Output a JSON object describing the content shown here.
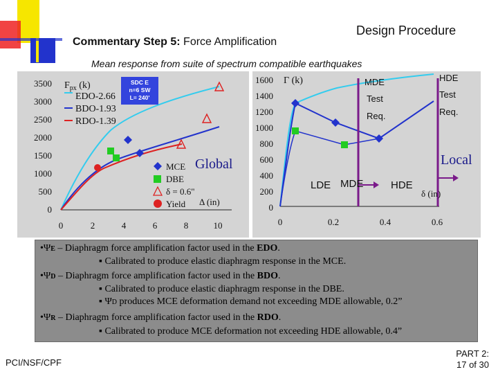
{
  "header": {
    "title_bold": "Commentary Step 5:",
    "title_rest": " Force Amplification",
    "right_title": "Design Procedure",
    "subtitle": "Mean response from suite of spectrum compatible earthquakes"
  },
  "left_chart": {
    "y_title": "F",
    "y_title_sub": "px",
    "y_title_unit": " (k)",
    "y_ticks": [
      "3500",
      "3000",
      "2500",
      "2000",
      "1500",
      "1000",
      "500",
      "0"
    ],
    "x_ticks": [
      "0",
      "2",
      "4",
      "6",
      "8",
      "10"
    ],
    "series_labels": [
      "EDO-2.66",
      "BDO-1.93",
      "RDO-1.39"
    ],
    "box_lines": [
      "SDC E",
      "n=6 SW",
      "L= 240'"
    ],
    "annotation": "Global",
    "legend": [
      "MCE",
      "DBE",
      "δ = 0.6\"",
      "Yield"
    ],
    "x_title": "Δ (in)"
  },
  "right_chart": {
    "y_title": "Γ (k)",
    "y_ticks": [
      "1600",
      "1400",
      "1200",
      "1000",
      "800",
      "600",
      "400",
      "200",
      "0"
    ],
    "x_ticks": [
      "0",
      "0.2",
      "0.4",
      "0.6"
    ],
    "labels": {
      "mde_top": "MDE",
      "test1": "Test",
      "req1": "Req.",
      "hde_top": "HDE",
      "test2": "Test",
      "req2": "Req.",
      "local": "Local",
      "lde": "LDE",
      "mde_bottom": "MDE",
      "hde_bottom": "HDE",
      "x_title": "δ (in)"
    }
  },
  "bullets": [
    {
      "prefix": "•Ψ",
      "sub": "E",
      "text": " –  Diaphragm force amplification factor used in the ",
      "bold": "EDO",
      "after": "."
    },
    {
      "sub_bullet": "▪ Calibrated to produce elastic diaphragm response in the MCE."
    },
    {
      "prefix": "•Ψ",
      "sub": "D",
      "text": " – Diaphragm force amplification factor used in the ",
      "bold": "BDO",
      "after": "."
    },
    {
      "sub_bullet": "▪ Calibrated to produce elastic diaphragm response in the DBE."
    },
    {
      "sub_bullet": "▪ Ψ",
      "sub2": "D",
      "rest": " produces MCE deformation demand not exceeding MDE allowable, 0.2”"
    },
    {
      "prefix": "•Ψ",
      "sub": "R",
      "text": " – Diaphragm force amplification factor used in the ",
      "bold": "RDO",
      "after": "."
    },
    {
      "sub_bullet": "▪ Calibrated to produce MCE deformation not exceeding HDE allowable, 0.4”"
    }
  ],
  "footer": {
    "left": "PCI/NSF/CPF",
    "right_line1": "PART 2:",
    "right_line2": "17 of 30"
  },
  "colors": {
    "edo": "#33ccee",
    "bdo": "#2233cc",
    "rdo": "#dd2222",
    "green": "#22cc22",
    "purple": "#7a1a8a",
    "logo_yellow": "#f5e000",
    "logo_red": "#ee2222",
    "logo_blue": "#2233cc"
  }
}
